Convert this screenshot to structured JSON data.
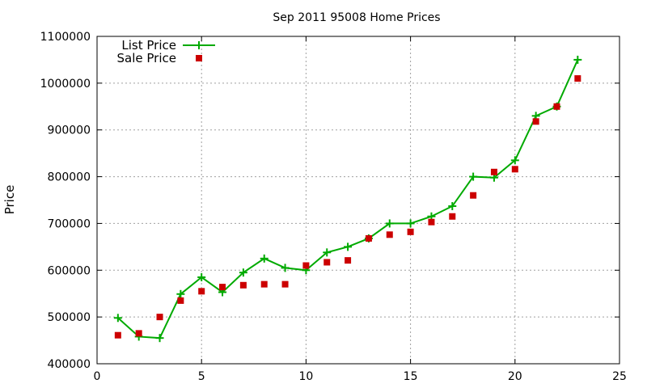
{
  "chart_data": {
    "type": "line",
    "title": "Sep 2011 95008 Home Prices",
    "xlabel": "",
    "ylabel": "Price",
    "xlim": [
      0,
      25
    ],
    "ylim": [
      400000,
      1100000
    ],
    "xticks": [
      "0",
      "5",
      "10",
      "15",
      "20",
      "25"
    ],
    "yticks": [
      "400000",
      "500000",
      "600000",
      "700000",
      "800000",
      "900000",
      "1000000",
      "1100000"
    ],
    "grid": true,
    "legend_position": "top-left",
    "x": [
      1,
      2,
      3,
      4,
      5,
      6,
      7,
      8,
      9,
      10,
      11,
      12,
      13,
      14,
      15,
      16,
      17,
      18,
      19,
      20,
      21,
      22,
      23
    ],
    "series": [
      {
        "name": "List Price",
        "style": "line+cross",
        "color": "#00aa00",
        "values": [
          498000,
          458000,
          455000,
          549000,
          585000,
          553000,
          595000,
          625000,
          605000,
          600000,
          638000,
          650000,
          668000,
          700000,
          700000,
          715000,
          737000,
          800000,
          798000,
          835000,
          930000,
          950000,
          1050000
        ]
      },
      {
        "name": "Sale Price",
        "style": "square",
        "color": "#cc0000",
        "values": [
          461000,
          465000,
          500000,
          535000,
          555000,
          564000,
          568000,
          570000,
          570000,
          610000,
          617000,
          621000,
          668000,
          676000,
          682000,
          703000,
          715000,
          760000,
          810000,
          816000,
          918000,
          950000,
          1010000
        ]
      }
    ]
  }
}
